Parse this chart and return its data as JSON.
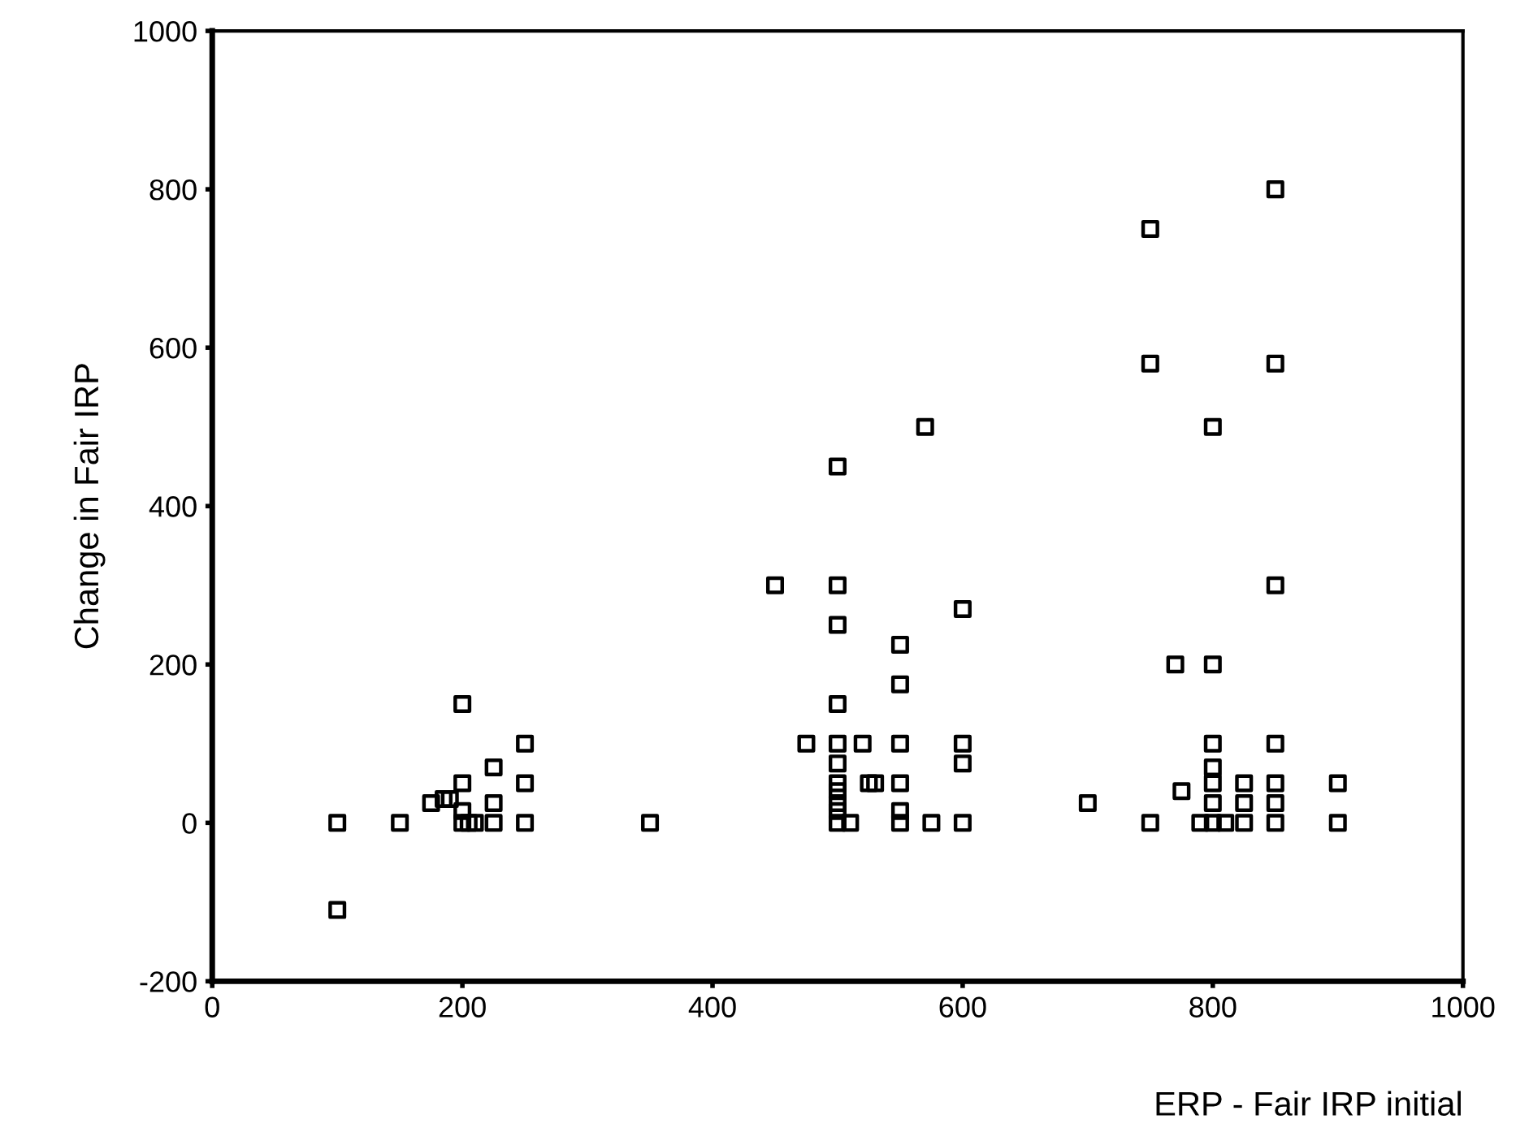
{
  "chart_data": {
    "type": "scatter",
    "xlabel": "ERP - Fair IRP initial",
    "ylabel": "Change in Fair IRP",
    "xlim": [
      0,
      1000
    ],
    "xticks": [
      0,
      200,
      400,
      600,
      800,
      1000
    ],
    "ylim": [
      -200,
      1000
    ],
    "yticks": [
      -200,
      0,
      200,
      400,
      600,
      800,
      1000
    ],
    "grid": false,
    "marker": "square",
    "series": [
      {
        "color": "#000000",
        "x": [
          100,
          100,
          150,
          175,
          185,
          190,
          200,
          200,
          200,
          200,
          205,
          210,
          225,
          225,
          225,
          250,
          250,
          250,
          350,
          450,
          475,
          500,
          500,
          500,
          500,
          500,
          500,
          500,
          500,
          500,
          500,
          500,
          510,
          520,
          525,
          530,
          550,
          550,
          550,
          550,
          550,
          550,
          570,
          575,
          600,
          600,
          600,
          600,
          700,
          750,
          750,
          750,
          770,
          775,
          790,
          800,
          800,
          800,
          800,
          800,
          800,
          800,
          810,
          825,
          825,
          825,
          850,
          850,
          850,
          850,
          850,
          850,
          850,
          900,
          900
        ],
        "values": [
          0,
          -110,
          0,
          25,
          30,
          30,
          150,
          50,
          15,
          0,
          0,
          0,
          70,
          25,
          0,
          100,
          50,
          0,
          0,
          300,
          100,
          450,
          300,
          250,
          150,
          100,
          75,
          50,
          40,
          25,
          15,
          0,
          0,
          100,
          50,
          50,
          225,
          175,
          100,
          50,
          15,
          0,
          500,
          0,
          270,
          100,
          75,
          0,
          25,
          750,
          580,
          0,
          200,
          40,
          0,
          500,
          200,
          100,
          70,
          50,
          25,
          0,
          0,
          50,
          25,
          0,
          800,
          580,
          300,
          100,
          50,
          25,
          0,
          50,
          0
        ]
      }
    ]
  }
}
